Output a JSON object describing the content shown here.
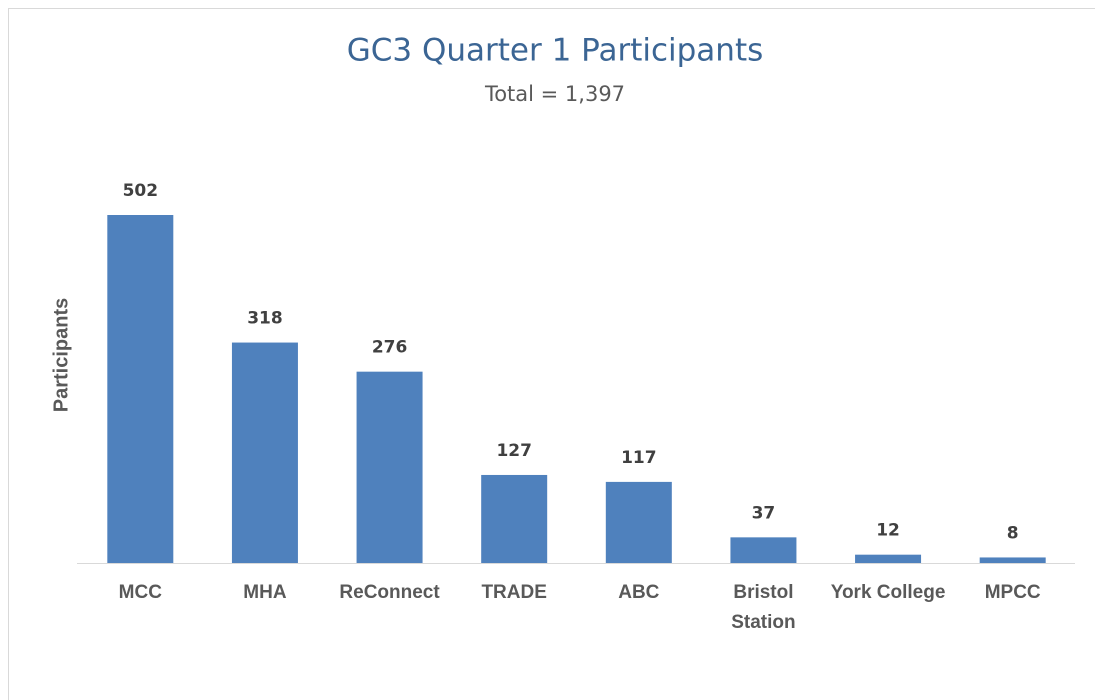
{
  "chart_data": {
    "type": "bar",
    "title": "GC3 Quarter 1 Participants",
    "subtitle": "Total = 1,397",
    "y_label": "Participants",
    "categories": [
      "MCC",
      "MHA",
      "ReConnect",
      "TRADE",
      "ABC",
      "Bristol Station",
      "York College",
      "MPCC"
    ],
    "values": [
      502,
      318,
      276,
      127,
      117,
      37,
      12,
      8
    ],
    "color": "#4f81bd"
  }
}
